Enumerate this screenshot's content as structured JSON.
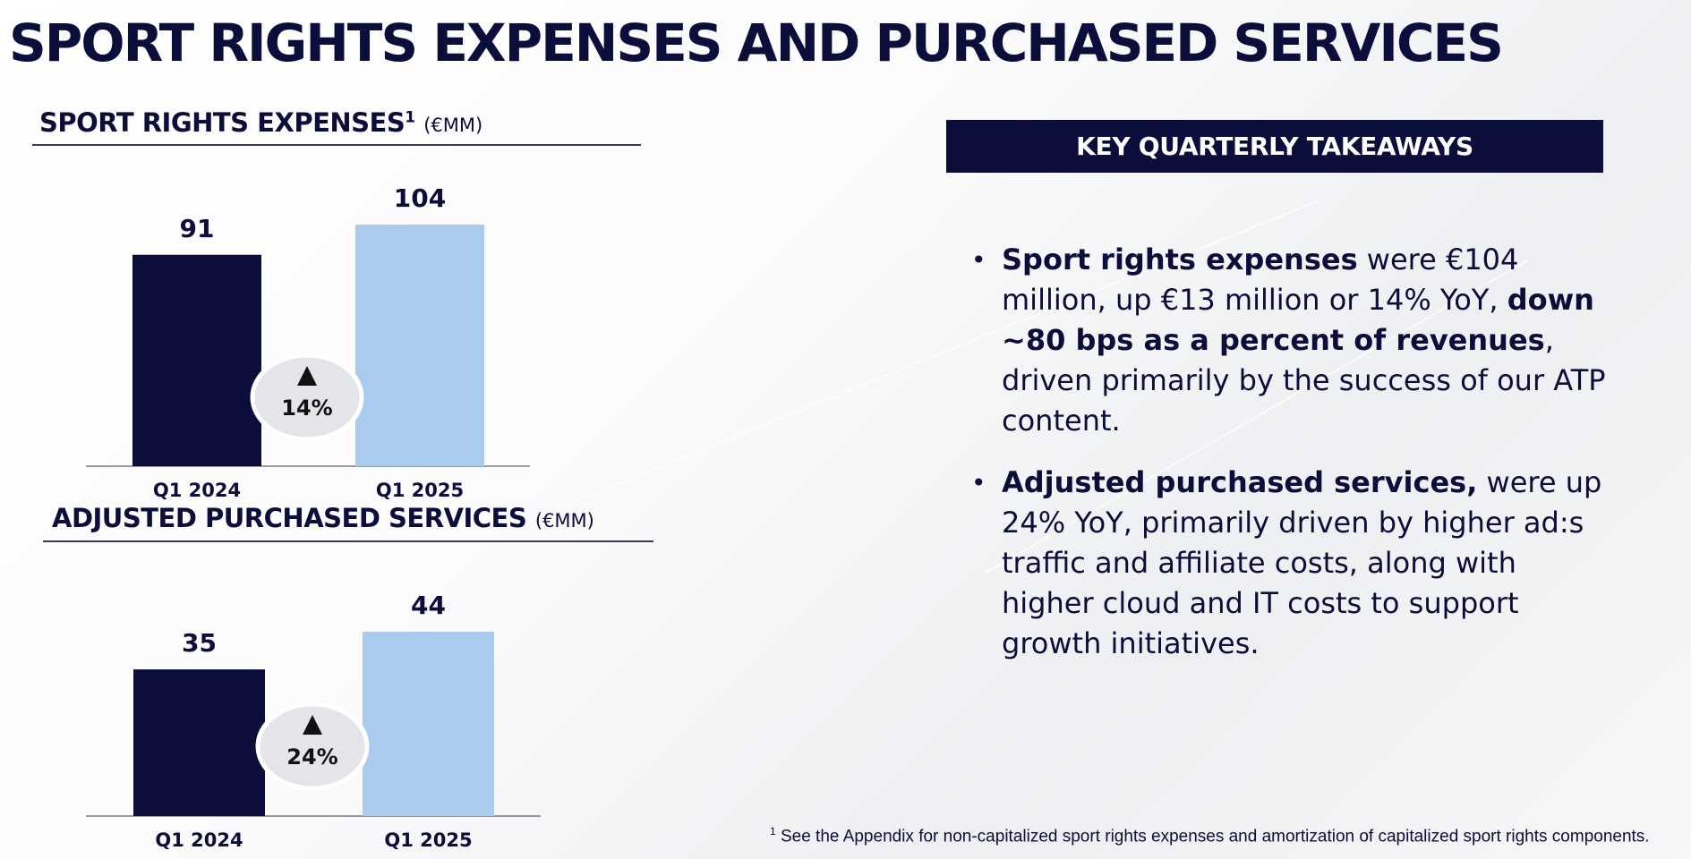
{
  "title": "SPORT RIGHTS EXPENSES AND PURCHASED SERVICES",
  "chart_data": [
    {
      "type": "bar",
      "title": "SPORT RIGHTS EXPENSES",
      "title_superscript": "1",
      "unit": "(€MM)",
      "categories": [
        "Q1 2024",
        "Q1 2025"
      ],
      "values": [
        91,
        104
      ],
      "colors": [
        "#0b0d3a",
        "#a9cbed"
      ],
      "change_badge": "14%",
      "grid": false
    },
    {
      "type": "bar",
      "title": "ADJUSTED PURCHASED SERVICES",
      "unit": "(€MM)",
      "categories": [
        "Q1 2024",
        "Q1 2025"
      ],
      "values": [
        35,
        44
      ],
      "colors": [
        "#0b0d3a",
        "#a9cbed"
      ],
      "change_badge": "24%",
      "grid": false
    }
  ],
  "takeaways": {
    "header": "KEY QUARTERLY TAKEAWAYS",
    "bullet1": {
      "b1": "Sport rights expenses",
      "t1": " were €104 million, up €13 million or 14% YoY, ",
      "b2": "down ~80 bps as a percent of revenues",
      "t2": ", driven primarily by the success of our ATP content."
    },
    "bullet2": {
      "b1": "Adjusted purchased services,",
      "t1": " were up 24% YoY, primarily driven by higher ad:s traffic and affiliate costs, along with higher cloud and IT costs to support growth initiatives."
    }
  },
  "footnote": {
    "marker": "1",
    "text": " See the Appendix for non-capitalized sport rights expenses and amortization of capitalized sport rights components."
  },
  "colors": {
    "navy": "#0b0d3a",
    "light_blue": "#a9cbed",
    "badge": "#e4e5e8"
  }
}
